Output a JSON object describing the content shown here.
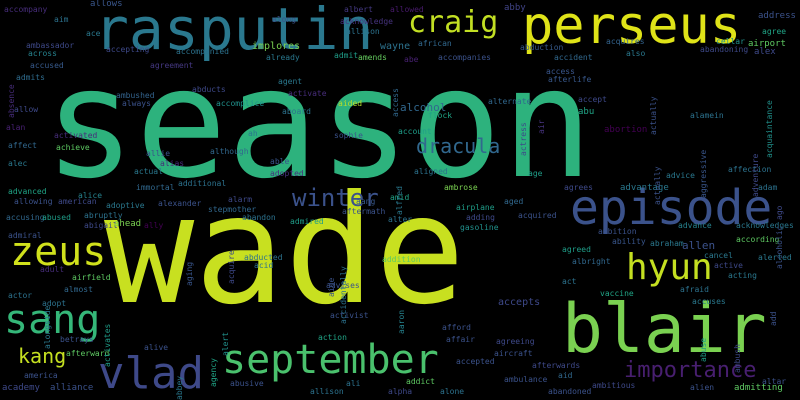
{
  "words": [
    {
      "text": "season",
      "color": "#2db27d"
    },
    {
      "text": "wade",
      "color": "#c8e020"
    },
    {
      "text": "rasputin",
      "color": "#2a788e"
    },
    {
      "text": "perseus",
      "color": "#dfe318"
    },
    {
      "text": "blair",
      "color": "#7ad151"
    },
    {
      "text": "episode",
      "color": "#3b528b"
    },
    {
      "text": "september",
      "color": "#4ac16d"
    },
    {
      "text": "craig",
      "color": "#c2df23"
    },
    {
      "text": "zeus",
      "color": "#d0e11c"
    },
    {
      "text": "sang",
      "color": "#35b779"
    },
    {
      "text": "hyun",
      "color": "#c5e021"
    },
    {
      "text": "vlad",
      "color": "#3e4989"
    },
    {
      "text": "winter",
      "color": "#3b528b"
    },
    {
      "text": "dracula",
      "color": "#31688e"
    },
    {
      "text": "importance",
      "color": "#481f70"
    },
    {
      "text": "kang",
      "color": "#c5e021"
    },
    {
      "text": "allows",
      "color": "#39568c"
    },
    {
      "text": "abby",
      "color": "#414487"
    },
    {
      "text": "address",
      "color": "#3b528b"
    },
    {
      "text": "accompany",
      "color": "#472d7b"
    },
    {
      "text": "aim",
      "color": "#2c728e"
    },
    {
      "text": "allowed",
      "color": "#481a6c"
    },
    {
      "text": "albert",
      "color": "#443983"
    },
    {
      "text": "acknowledge",
      "color": "#46337e"
    },
    {
      "text": "allison",
      "color": "#2c728e"
    },
    {
      "text": "along",
      "color": "#3b528b"
    },
    {
      "text": "cellar",
      "color": "#21918c"
    },
    {
      "text": "agree",
      "color": "#20a486"
    },
    {
      "text": "airport",
      "color": "#5ec962"
    },
    {
      "text": "alex",
      "color": "#3e4989"
    },
    {
      "text": "ace",
      "color": "#2a788e"
    },
    {
      "text": "african",
      "color": "#31688e"
    },
    {
      "text": "abduction",
      "color": "#375a8c"
    },
    {
      "text": "ambassador",
      "color": "#3e4989"
    },
    {
      "text": "across",
      "color": "#26828e"
    },
    {
      "text": "accepting",
      "color": "#3e4989"
    },
    {
      "text": "accompanied",
      "color": "#2c728e"
    },
    {
      "text": "implores",
      "color": "#7ad151"
    },
    {
      "text": "already",
      "color": "#2a788e"
    },
    {
      "text": "admit",
      "color": "#1f9e89"
    },
    {
      "text": "amends",
      "color": "#65cb5e"
    },
    {
      "text": "abe",
      "color": "#482173"
    },
    {
      "text": "accompanies",
      "color": "#3b528b"
    },
    {
      "text": "accident",
      "color": "#31688e"
    },
    {
      "text": "acquires",
      "color": "#33638d"
    },
    {
      "text": "abandoning",
      "color": "#3e4989"
    },
    {
      "text": "accused",
      "color": "#375a8c"
    },
    {
      "text": "agreement",
      "color": "#453882"
    },
    {
      "text": "admits",
      "color": "#2f6c8e"
    },
    {
      "text": "agent",
      "color": "#2a788e"
    },
    {
      "text": "access",
      "color": "#31688e"
    },
    {
      "text": "afterlife",
      "color": "#39568c"
    },
    {
      "text": "ambushed",
      "color": "#38588c"
    },
    {
      "text": "abducts",
      "color": "#33638d"
    },
    {
      "text": "activate",
      "color": "#3e4989"
    },
    {
      "text": "alternate",
      "color": "#472d7b"
    },
    {
      "text": "accept",
      "color": "#31688e"
    },
    {
      "text": "air",
      "color": "#3e4989"
    },
    {
      "text": "abu",
      "color": "#46337e"
    },
    {
      "text": "allow",
      "color": "#20a486"
    },
    {
      "text": "always",
      "color": "#3e4989"
    },
    {
      "text": "accomplice",
      "color": "#3b528b"
    },
    {
      "text": "aided",
      "color": "#21918c"
    },
    {
      "text": "aboard",
      "color": "#b5de2b"
    },
    {
      "text": "alcohol",
      "color": "#2c728e"
    },
    {
      "text": "flock",
      "color": "#31688e"
    },
    {
      "text": "actress",
      "color": "#20a486"
    },
    {
      "text": "abortion",
      "color": "#3e4989"
    },
    {
      "text": "alamein",
      "color": "#440154"
    },
    {
      "text": "alan",
      "color": "#2c728e"
    },
    {
      "text": "activated",
      "color": "#482173"
    },
    {
      "text": "ah",
      "color": "#472d7b"
    },
    {
      "text": "sophie",
      "color": "#2a788e"
    },
    {
      "text": "account",
      "color": "#3b528b"
    },
    {
      "text": "affect",
      "color": "#1f9e89"
    },
    {
      "text": "achieve",
      "color": "#31688e"
    },
    {
      "text": "although",
      "color": "#5ec962"
    },
    {
      "text": "adventure",
      "color": "#31688e"
    },
    {
      "text": "alec",
      "color": "#3e4989"
    },
    {
      "text": "allie",
      "color": "#2a788e"
    },
    {
      "text": "alias",
      "color": "#3b528b"
    },
    {
      "text": "able",
      "color": "#472d7b"
    },
    {
      "text": "alfred",
      "color": "#39568c"
    },
    {
      "text": "aligned",
      "color": "#2a788e"
    },
    {
      "text": "age",
      "color": "#2c728e"
    },
    {
      "text": "advice",
      "color": "#1f9e89"
    },
    {
      "text": "advanced",
      "color": "#2a788e"
    },
    {
      "text": "immortal",
      "color": "#20a486"
    },
    {
      "text": "actual",
      "color": "#31688e"
    },
    {
      "text": "adopted",
      "color": "#2a788e"
    },
    {
      "text": "ambrose",
      "color": "#46337e"
    },
    {
      "text": "advantage",
      "color": "#7ad151"
    },
    {
      "text": "allowing",
      "color": "#2a788e"
    },
    {
      "text": "american",
      "color": "#3b528b"
    },
    {
      "text": "alice",
      "color": "#3e4989"
    },
    {
      "text": "additional",
      "color": "#26828e"
    },
    {
      "text": "agrees",
      "color": "#2c728e"
    },
    {
      "text": "advance",
      "color": "#3e4989"
    },
    {
      "text": "adoptive",
      "color": "#26828e"
    },
    {
      "text": "alexander",
      "color": "#2a788e"
    },
    {
      "text": "stepmother",
      "color": "#3b528b"
    },
    {
      "text": "alarm",
      "color": "#31688e"
    },
    {
      "text": "aang",
      "color": "#3e4989"
    },
    {
      "text": "amid",
      "color": "#38588c"
    },
    {
      "text": "aged",
      "color": "#20a486"
    },
    {
      "text": "accusing",
      "color": "#31688e"
    },
    {
      "text": "abused",
      "color": "#31688e"
    },
    {
      "text": "abruptly",
      "color": "#1f9e89"
    },
    {
      "text": "abandon",
      "color": "#2c728e"
    },
    {
      "text": "aftermath",
      "color": "#2c728e"
    },
    {
      "text": "airplane",
      "color": "#3b528b"
    },
    {
      "text": "acquired",
      "color": "#1f9e89"
    },
    {
      "text": "abigail",
      "color": "#3b528b"
    },
    {
      "text": "ahead",
      "color": "#3e4989"
    },
    {
      "text": "ally",
      "color": "#7ad151"
    },
    {
      "text": "admired",
      "color": "#440154"
    },
    {
      "text": "alter",
      "color": "#1f9e89"
    },
    {
      "text": "adding",
      "color": "#2c728e"
    },
    {
      "text": "gasoline",
      "color": "#3e4989"
    },
    {
      "text": "admiral",
      "color": "#21918c"
    },
    {
      "text": "aging",
      "color": "#3b528b"
    },
    {
      "text": "acquire",
      "color": "#39568c"
    },
    {
      "text": "aide",
      "color": "#3e4989"
    },
    {
      "text": "accidentally",
      "color": "#3b528b"
    },
    {
      "text": "ambition",
      "color": "#2c728e"
    },
    {
      "text": "adult",
      "color": "#3b528b"
    },
    {
      "text": "abducted",
      "color": "#472d7b"
    },
    {
      "text": "addition",
      "color": "#2c728e"
    },
    {
      "text": "agreed",
      "color": "#5ec962"
    },
    {
      "text": "albright",
      "color": "#1f9e89"
    },
    {
      "text": "ability",
      "color": "#31688e"
    },
    {
      "text": "abraham",
      "color": "#39568c"
    },
    {
      "text": "allen",
      "color": "#2a788e"
    },
    {
      "text": "cancel",
      "color": "#3b528b"
    },
    {
      "text": "active",
      "color": "#2a788e"
    },
    {
      "text": "according",
      "color": "#3e4989"
    },
    {
      "text": "acknowledges",
      "color": "#5ec962"
    },
    {
      "text": "alerted",
      "color": "#2a788e"
    },
    {
      "text": "airfield",
      "color": "#2a788e"
    },
    {
      "text": "acid",
      "color": "#5ec962"
    },
    {
      "text": "almost",
      "color": "#2c728e"
    },
    {
      "text": "advises",
      "color": "#31688e"
    },
    {
      "text": "act",
      "color": "#3b528b"
    },
    {
      "text": "vaccine",
      "color": "#2c728e"
    },
    {
      "text": "afraid",
      "color": "#20a486"
    },
    {
      "text": "acting",
      "color": "#2c728e"
    },
    {
      "text": "alongside",
      "color": "#2a788e"
    },
    {
      "text": "actor",
      "color": "#2a788e"
    },
    {
      "text": "adopt",
      "color": "#2c728e"
    },
    {
      "text": "alert",
      "color": "#2c728e"
    },
    {
      "text": "activist",
      "color": "#21918c"
    },
    {
      "text": "aaron",
      "color": "#3b528b"
    },
    {
      "text": "accuses",
      "color": "#26828e"
    },
    {
      "text": "abuse",
      "color": "#2a788e"
    },
    {
      "text": "activates",
      "color": "#1f9e89"
    },
    {
      "text": "accepts",
      "color": "#1f9e89"
    },
    {
      "text": "betrays",
      "color": "#3e4989"
    },
    {
      "text": "alive",
      "color": "#3b528b"
    },
    {
      "text": "agency",
      "color": "#3b528b"
    },
    {
      "text": "action",
      "color": "#20a486"
    },
    {
      "text": "afford",
      "color": "#20a486"
    },
    {
      "text": "affair",
      "color": "#3b528b"
    },
    {
      "text": "agreeing",
      "color": "#3b528b"
    },
    {
      "text": "aircraft",
      "color": "#3e4989"
    },
    {
      "text": "accepted",
      "color": "#3b528b"
    },
    {
      "text": "afterward",
      "color": "#3b528b"
    },
    {
      "text": "afterwards",
      "color": "#5ec962"
    },
    {
      "text": "ambush",
      "color": "#3e4989"
    },
    {
      "text": "america",
      "color": "#3e4989"
    },
    {
      "text": "aid",
      "color": "#3b528b"
    },
    {
      "text": "ambulance",
      "color": "#31688e"
    },
    {
      "text": "academy",
      "color": "#3b528b"
    },
    {
      "text": "alliance",
      "color": "#3e4989"
    },
    {
      "text": "abusive",
      "color": "#3b528b"
    },
    {
      "text": "ali",
      "color": "#3b528b"
    },
    {
      "text": "addict",
      "color": "#2c728e"
    },
    {
      "text": "ambitious",
      "color": "#5ec962"
    },
    {
      "text": "alien",
      "color": "#3e4989"
    },
    {
      "text": "admitting",
      "color": "#3b528b"
    },
    {
      "text": "altar",
      "color": "#5ec962"
    },
    {
      "text": "abbey",
      "color": "#3b528b"
    },
    {
      "text": "alpha",
      "color": "#2a788e"
    },
    {
      "text": "alone",
      "color": "#3e4989"
    },
    {
      "text": "abandoned",
      "color": "#2c728e"
    },
    {
      "text": "absence",
      "color": "#3b528b"
    },
    {
      "text": "aggressive",
      "color": "#472d7b"
    },
    {
      "text": "actually",
      "color": "#39568c"
    },
    {
      "text": "also",
      "color": "#3b528b"
    },
    {
      "text": "acquaintance",
      "color": "#3b528b"
    },
    {
      "text": "ago",
      "color": "#2a788e"
    },
    {
      "text": "alcoholic",
      "color": "#21918c"
    },
    {
      "text": "affection",
      "color": "#3e4989"
    },
    {
      "text": "adam",
      "color": "#3b528b"
    },
    {
      "text": "add",
      "color": "#2c728e"
    },
    {
      "text": "al",
      "color": "#2c728e"
    },
    {
      "text": "activity",
      "color": "#3b528b"
    },
    {
      "text": "wayne",
      "color": "#2c728e"
    }
  ]
}
